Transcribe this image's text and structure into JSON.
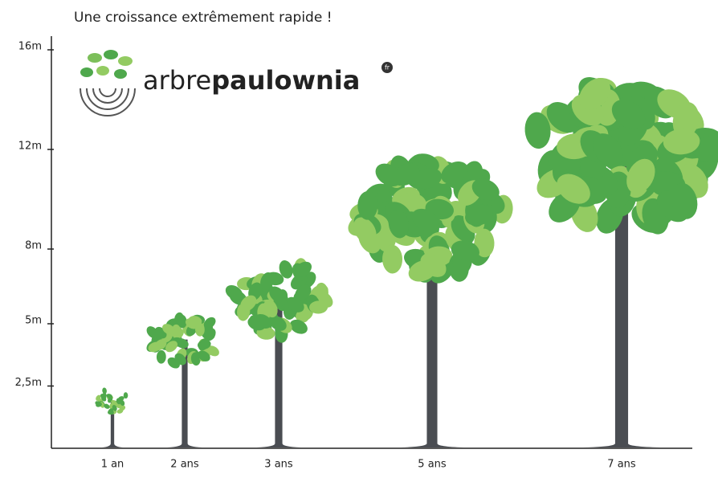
{
  "chart_data": {
    "type": "tree",
    "title": "Une croissance extrêmement rapide !",
    "logo": {
      "prefix": "arbre",
      "name": "paulownia",
      "badge": "fr"
    },
    "categories": [
      "1 an",
      "2 ans",
      "3 ans",
      "5 ans",
      "7 ans"
    ],
    "values": [
      2.5,
      5.6,
      7.7,
      11.9,
      15.2
    ],
    "ylim": [
      0,
      16
    ],
    "yticks": [
      {
        "value": 2.5,
        "label": "2,5m"
      },
      {
        "value": 5,
        "label": "5m"
      },
      {
        "value": 8,
        "label": "8m"
      },
      {
        "value": 12,
        "label": "12m"
      },
      {
        "value": 16,
        "label": "16m"
      }
    ],
    "colors": {
      "leaf": "#4fa84c",
      "leaf_light": "#93cb62",
      "trunk": "#4a4d52"
    }
  }
}
